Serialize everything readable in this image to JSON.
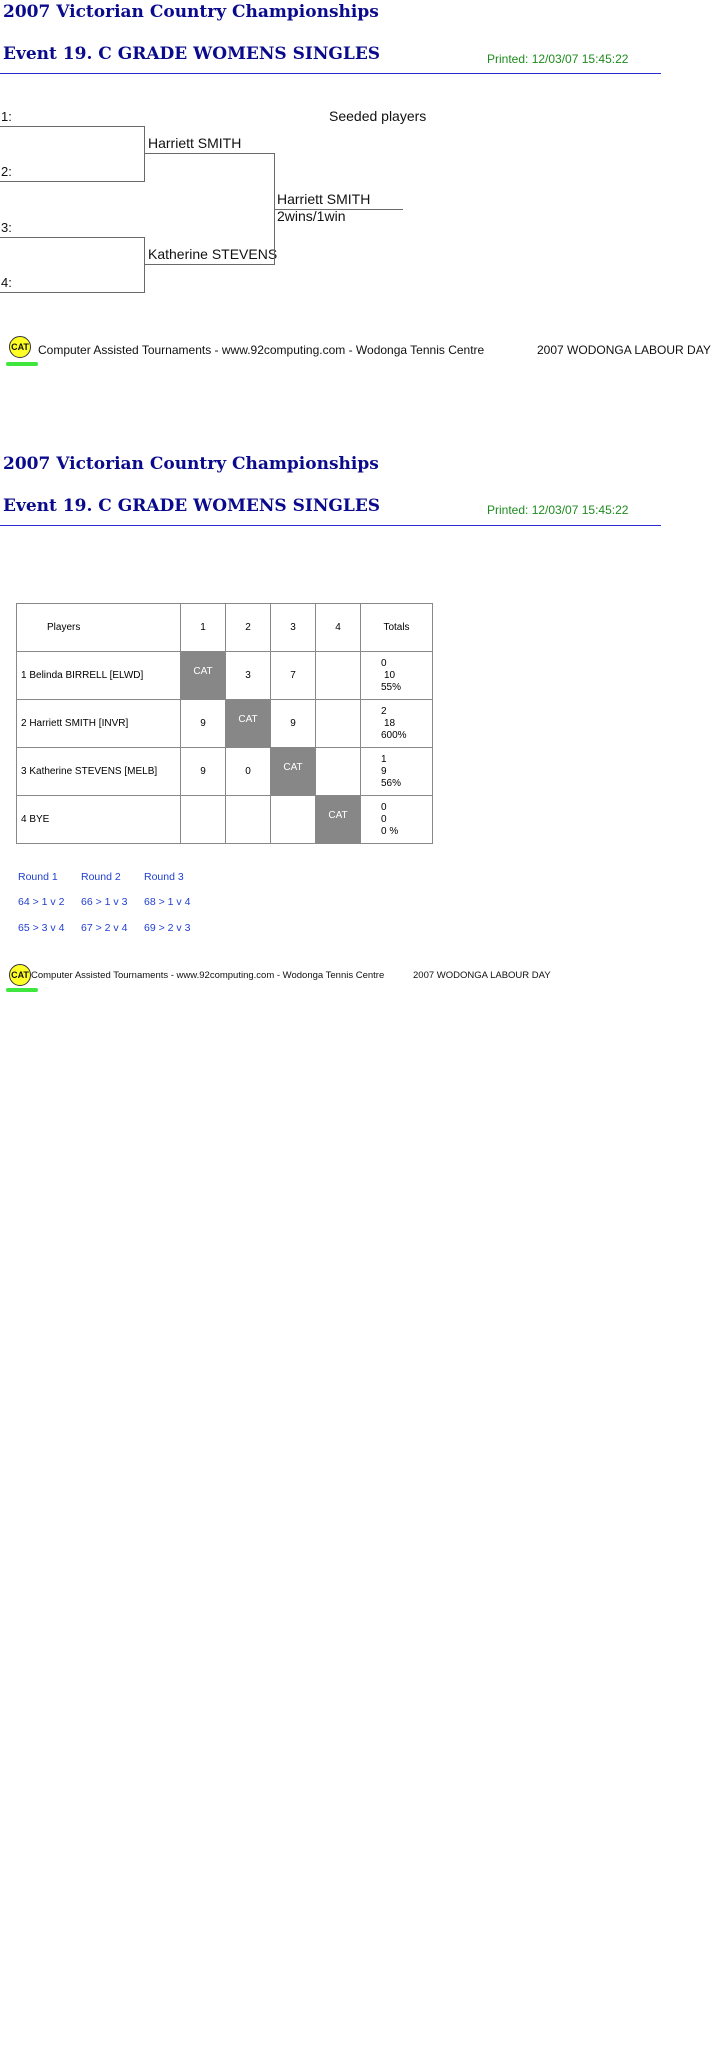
{
  "page1": {
    "title": "2007 Victorian Country Championships",
    "event": "Event 19. C GRADE WOMENS SINGLES",
    "printed": "Printed: 12/03/07 15:45:22",
    "seeded_label": "Seeded players",
    "slots": [
      "1:",
      "2:",
      "3:",
      "4:"
    ],
    "semi_winners": [
      "Harriett SMITH",
      "Katherine STEVENS"
    ],
    "final_winner": "Harriett SMITH",
    "final_score": "2wins/1win",
    "footer": {
      "badge": "CAT",
      "text": "Computer Assisted Tournaments - www.92computing.com -  Wodonga Tennis Centre",
      "tournament": "2007 WODONGA LABOUR DAY"
    }
  },
  "page2": {
    "title": "2007 Victorian Country Championships",
    "event": "Event 19. C GRADE WOMENS SINGLES",
    "printed": "Printed: 12/03/07 15:45:22",
    "table": {
      "header": [
        "Players",
        "1",
        "2",
        "3",
        "4",
        "Totals"
      ],
      "rows": [
        {
          "player": "1   Belinda BIRRELL [ELWD]",
          "cells": [
            "CAT",
            "3",
            "7",
            ""
          ],
          "totals": [
            "0",
            "10",
            "55%"
          ]
        },
        {
          "player": "2   Harriett SMITH [INVR]",
          "cells": [
            "9",
            "CAT",
            "9",
            ""
          ],
          "totals": [
            "2",
            "18",
            "600%"
          ]
        },
        {
          "player": "3   Katherine STEVENS [MELB]",
          "cells": [
            "9",
            "0",
            "CAT",
            ""
          ],
          "totals": [
            "1",
            "9",
            "56%"
          ]
        },
        {
          "player": "4   BYE",
          "cells": [
            "",
            "",
            "",
            "CAT"
          ],
          "totals": [
            "0",
            "0",
            "0 %"
          ]
        }
      ]
    },
    "rounds": {
      "headers": [
        "Round 1",
        "Round 2",
        "Round 3"
      ],
      "row1": [
        "64 > 1 v 2",
        "66 > 1 v 3",
        "68 > 1 v 4"
      ],
      "row2": [
        "65 > 3 v 4",
        "67 > 2 v 4",
        "69 > 2 v 3"
      ]
    },
    "footer": {
      "badge": "CAT",
      "text": "Computer Assisted Tournaments - www.92computing.com -  Wodonga Tennis Centre",
      "tournament": "2007 WODONGA LABOUR DAY"
    }
  }
}
